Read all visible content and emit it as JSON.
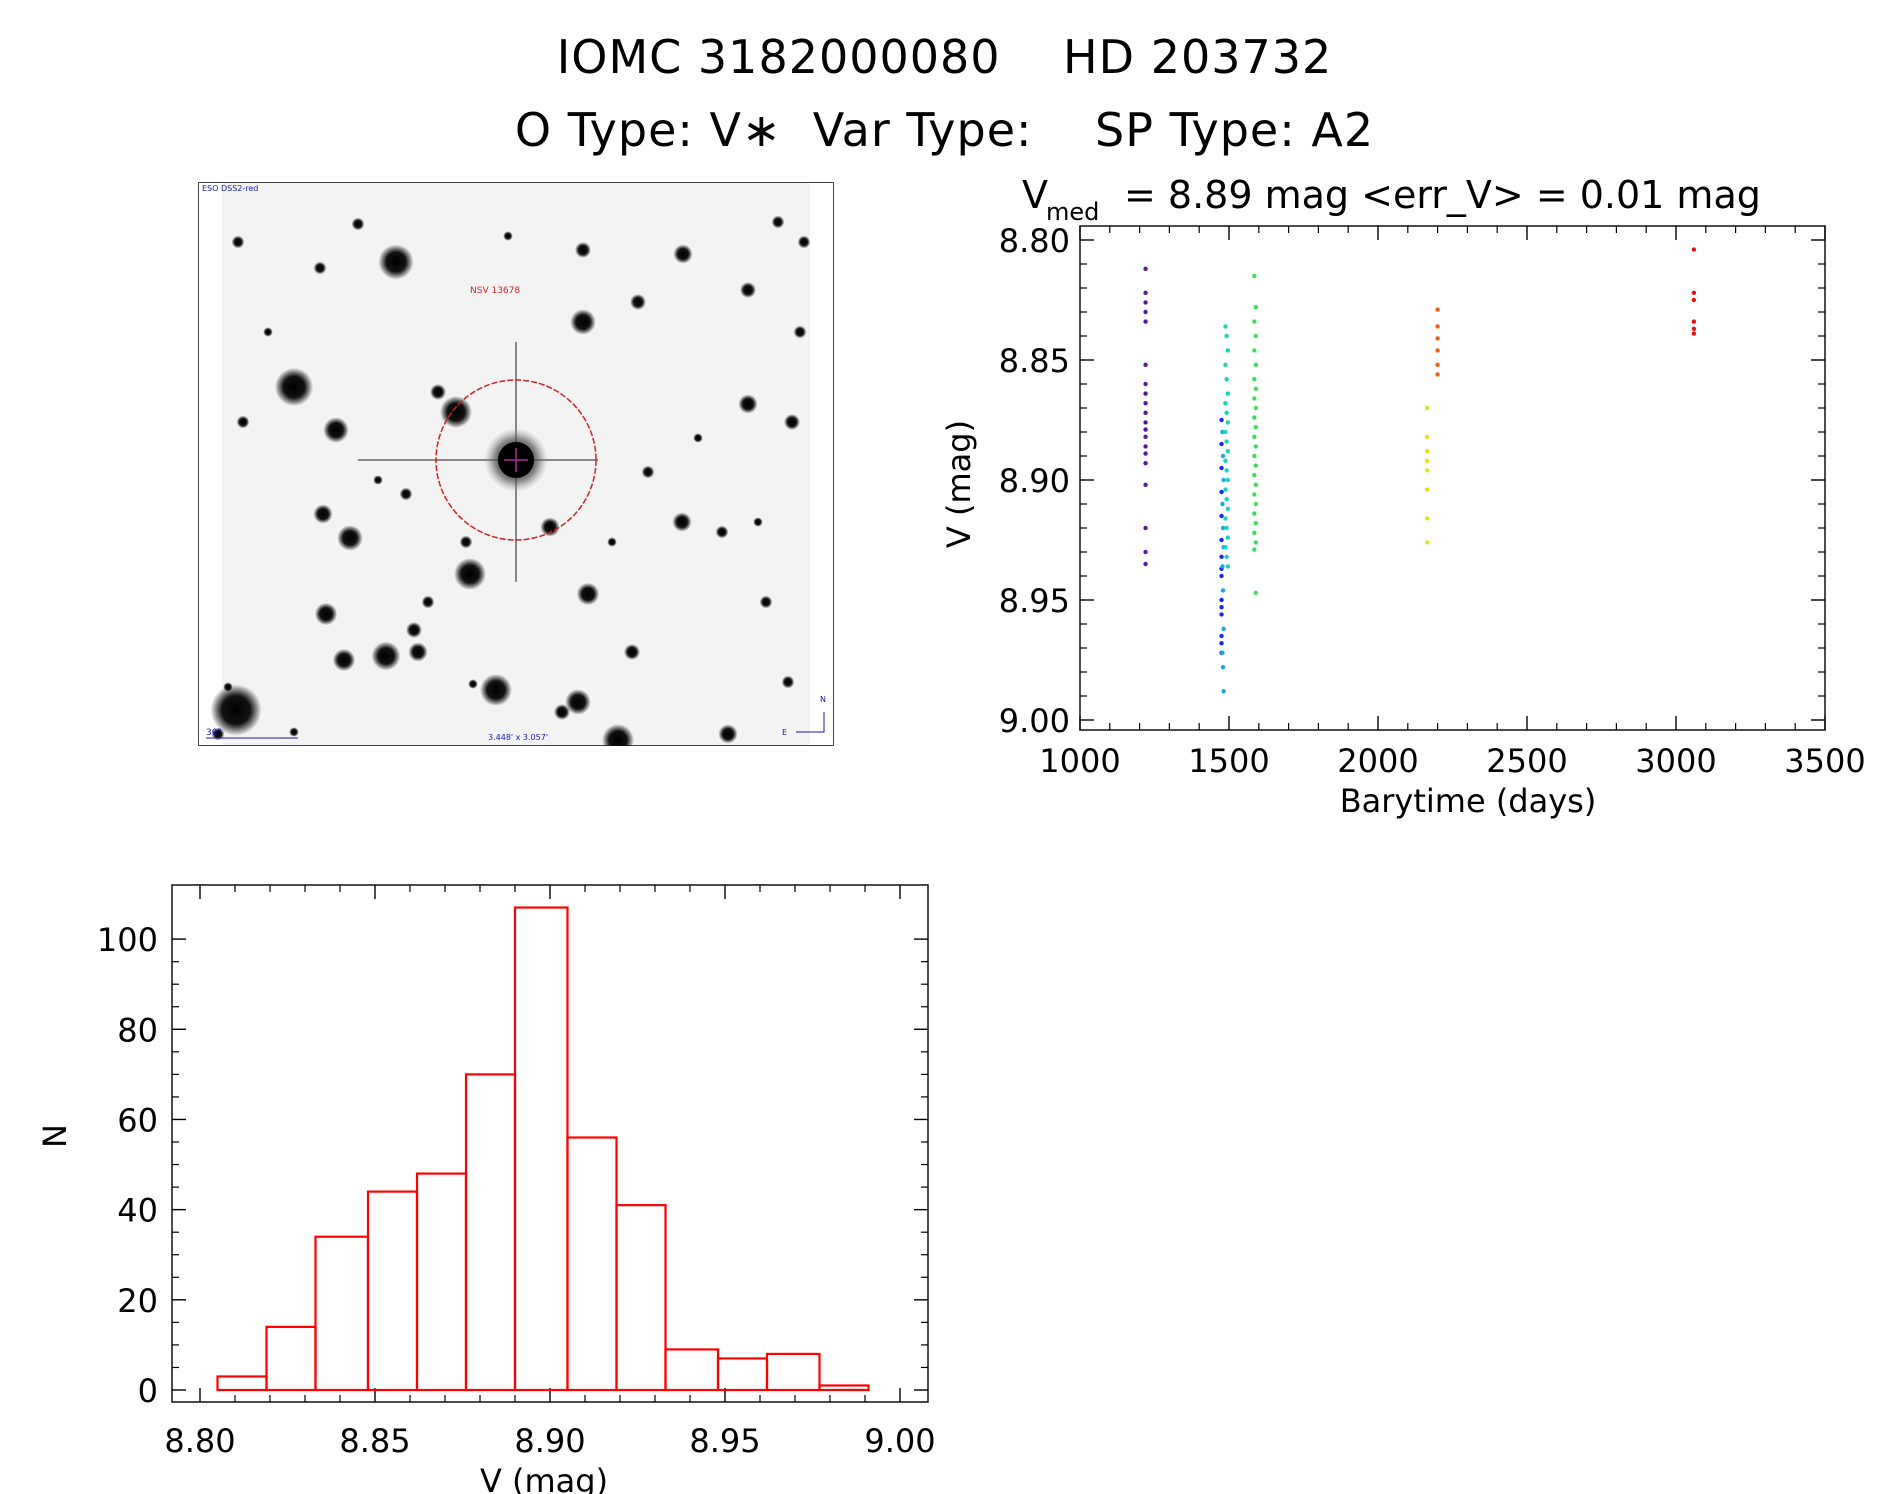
{
  "header": {
    "line1": "IOMC 3182000080    HD 203732",
    "line2": "O Type: V∗  Var Type:    SP Type: A2"
  },
  "finder_chart": {
    "survey_label": "ESO DSS2-red",
    "object_label": "NSV 13678",
    "scale_label": "30\"",
    "size_label": "3.448' x 3.057'",
    "north_label": "N",
    "east_label": "E",
    "circle_color": "#cc2222",
    "annotation_color": "#1a1aaa"
  },
  "light_curve": {
    "title_prefix": "V",
    "title_sub": "med",
    "title_rest": "= 8.89 mag <err_V> = 0.01 mag",
    "xlabel": "Barytime (days)",
    "ylabel": "V (mag)"
  },
  "histogram": {
    "xlabel": "V (mag)",
    "ylabel": "N",
    "bar_color": "#ff0000"
  },
  "chart_data": [
    {
      "type": "scatter",
      "name": "light_curve",
      "xlim": [
        1000,
        3500
      ],
      "ylim": [
        9.0,
        8.8
      ],
      "inverted_y": true,
      "xticks": [
        1000,
        1500,
        2000,
        2500,
        3000,
        3500
      ],
      "yticks": [
        8.8,
        8.85,
        8.9,
        8.95,
        9.0
      ],
      "series": [
        {
          "color": "#5a189a",
          "points": [
            [
              1220,
              8.812
            ],
            [
              1220,
              8.822
            ],
            [
              1220,
              8.826
            ],
            [
              1220,
              8.83
            ],
            [
              1220,
              8.834
            ],
            [
              1220,
              8.852
            ],
            [
              1220,
              8.86
            ],
            [
              1220,
              8.864
            ],
            [
              1220,
              8.868
            ],
            [
              1220,
              8.872
            ],
            [
              1220,
              8.876
            ],
            [
              1220,
              8.879
            ],
            [
              1220,
              8.882
            ],
            [
              1220,
              8.886
            ],
            [
              1220,
              8.889
            ],
            [
              1220,
              8.893
            ],
            [
              1220,
              8.902
            ],
            [
              1220,
              8.92
            ],
            [
              1220,
              8.93
            ],
            [
              1220,
              8.935
            ]
          ]
        },
        {
          "color": "#1a2ae0",
          "points": [
            [
              1475,
              8.875
            ],
            [
              1475,
              8.885
            ],
            [
              1475,
              8.895
            ],
            [
              1475,
              8.905
            ],
            [
              1475,
              8.915
            ],
            [
              1475,
              8.925
            ],
            [
              1475,
              8.932
            ],
            [
              1475,
              8.937
            ],
            [
              1475,
              8.94
            ],
            [
              1475,
              8.95
            ],
            [
              1475,
              8.953
            ],
            [
              1475,
              8.956
            ],
            [
              1475,
              8.965
            ],
            [
              1475,
              8.968
            ],
            [
              1475,
              8.972
            ]
          ]
        },
        {
          "color": "#17a8e8",
          "points": [
            [
              1478,
              8.88
            ],
            [
              1480,
              8.89
            ],
            [
              1482,
              8.9
            ],
            [
              1478,
              8.91
            ],
            [
              1480,
              8.92
            ],
            [
              1482,
              8.928
            ],
            [
              1478,
              8.936
            ],
            [
              1480,
              8.946
            ],
            [
              1482,
              8.962
            ],
            [
              1478,
              8.972
            ],
            [
              1480,
              8.978
            ],
            [
              1482,
              8.988
            ]
          ]
        },
        {
          "color": "#14d8b8",
          "points": [
            [
              1488,
              8.836
            ],
            [
              1492,
              8.84
            ],
            [
              1496,
              8.846
            ],
            [
              1488,
              8.852
            ],
            [
              1492,
              8.858
            ],
            [
              1496,
              8.864
            ],
            [
              1488,
              8.868
            ],
            [
              1492,
              8.872
            ],
            [
              1496,
              8.876
            ],
            [
              1488,
              8.88
            ],
            [
              1492,
              8.884
            ],
            [
              1496,
              8.888
            ],
            [
              1488,
              8.892
            ],
            [
              1492,
              8.896
            ],
            [
              1496,
              8.9
            ],
            [
              1488,
              8.904
            ],
            [
              1492,
              8.908
            ],
            [
              1496,
              8.912
            ],
            [
              1488,
              8.916
            ],
            [
              1492,
              8.92
            ],
            [
              1496,
              8.924
            ],
            [
              1488,
              8.928
            ],
            [
              1492,
              8.932
            ],
            [
              1496,
              8.936
            ]
          ]
        },
        {
          "color": "#3ae05a",
          "points": [
            [
              1585,
              8.815
            ],
            [
              1590,
              8.828
            ],
            [
              1585,
              8.834
            ],
            [
              1590,
              8.84
            ],
            [
              1585,
              8.846
            ],
            [
              1590,
              8.852
            ],
            [
              1585,
              8.858
            ],
            [
              1590,
              8.862
            ],
            [
              1585,
              8.866
            ],
            [
              1590,
              8.87
            ],
            [
              1585,
              8.874
            ],
            [
              1590,
              8.878
            ],
            [
              1585,
              8.882
            ],
            [
              1590,
              8.886
            ],
            [
              1585,
              8.89
            ],
            [
              1590,
              8.894
            ],
            [
              1585,
              8.898
            ],
            [
              1590,
              8.902
            ],
            [
              1585,
              8.906
            ],
            [
              1590,
              8.91
            ],
            [
              1585,
              8.914
            ],
            [
              1590,
              8.918
            ],
            [
              1585,
              8.922
            ],
            [
              1590,
              8.926
            ],
            [
              1585,
              8.929
            ],
            [
              1590,
              8.947
            ]
          ]
        },
        {
          "color": "#e8e010",
          "points": [
            [
              2165,
              8.87
            ],
            [
              2165,
              8.882
            ],
            [
              2165,
              8.888
            ],
            [
              2165,
              8.892
            ],
            [
              2165,
              8.896
            ],
            [
              2165,
              8.904
            ],
            [
              2165,
              8.916
            ],
            [
              2165,
              8.926
            ]
          ]
        },
        {
          "color": "#f06010",
          "points": [
            [
              2200,
              8.829
            ],
            [
              2200,
              8.836
            ],
            [
              2200,
              8.841
            ],
            [
              2200,
              8.846
            ],
            [
              2200,
              8.852
            ],
            [
              2200,
              8.856
            ]
          ]
        },
        {
          "color": "#e81010",
          "points": [
            [
              3060,
              8.804
            ],
            [
              3060,
              8.822
            ],
            [
              3060,
              8.825
            ],
            [
              3060,
              8.834
            ],
            [
              3060,
              8.837
            ],
            [
              3060,
              8.839
            ]
          ]
        }
      ]
    },
    {
      "type": "bar",
      "name": "histogram",
      "xlim": [
        8.8,
        9.0
      ],
      "ylim": [
        0,
        110
      ],
      "xticks": [
        8.8,
        8.85,
        8.9,
        8.95,
        9.0
      ],
      "yticks": [
        0,
        20,
        40,
        60,
        80,
        100
      ],
      "bin_edges": [
        8.805,
        8.819,
        8.833,
        8.848,
        8.862,
        8.876,
        8.89,
        8.905,
        8.919,
        8.933,
        8.948,
        8.962,
        8.977,
        8.991
      ],
      "values": [
        3,
        14,
        34,
        44,
        48,
        70,
        107,
        56,
        41,
        9,
        7,
        8,
        1
      ]
    }
  ]
}
